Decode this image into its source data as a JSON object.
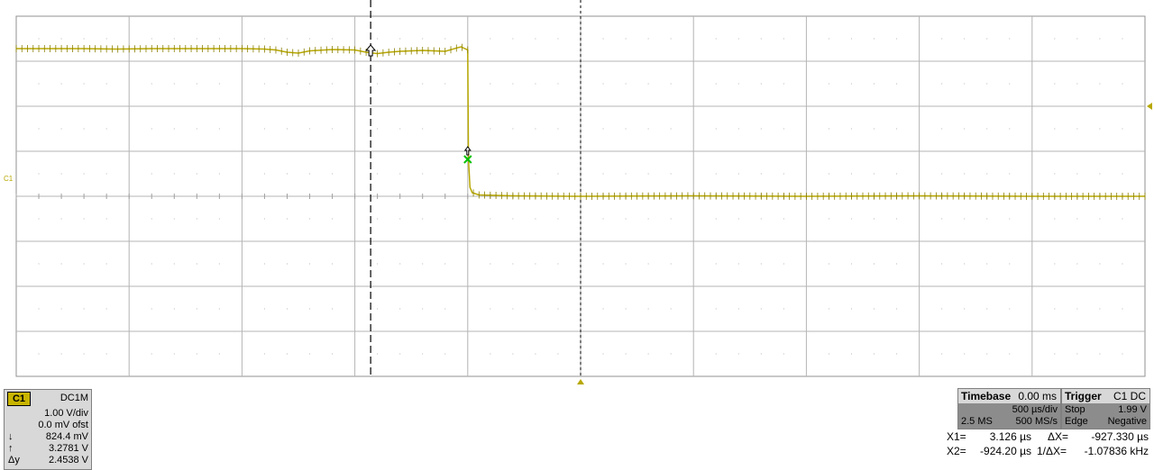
{
  "chart_data": {
    "type": "line",
    "grid": true,
    "x": [
      0,
      0.15,
      0.3,
      0.45,
      0.6,
      0.75,
      0.9,
      1.0,
      1.1,
      1.15,
      1.2,
      1.25,
      1.3,
      1.4,
      1.5,
      1.55,
      1.6,
      1.65,
      1.7,
      1.8,
      1.9,
      1.97,
      2.0,
      2.003,
      2.01,
      2.02,
      2.05,
      2.2,
      2.5,
      3.0,
      3.5,
      4.0,
      4.5,
      5.0
    ],
    "series": [
      {
        "values": [
          3.28,
          3.28,
          3.28,
          3.27,
          3.28,
          3.28,
          3.28,
          3.28,
          3.27,
          3.25,
          3.2,
          3.18,
          3.23,
          3.26,
          3.25,
          3.2,
          3.17,
          3.2,
          3.22,
          3.24,
          3.22,
          3.32,
          3.25,
          0.82,
          0.2,
          0.08,
          0.03,
          0.01,
          0.0,
          0.01,
          0.0,
          0.01,
          0.0,
          0.0
        ],
        "color": "#b8a800"
      }
    ],
    "xlim": [
      0,
      5
    ],
    "ylim": [
      -4,
      4
    ],
    "x_divisions": 10,
    "y_divisions": 8,
    "cursors_x": [
      1.57,
      2.5
    ],
    "marker": {
      "x": 2.0,
      "y": 0.82
    }
  },
  "channel": {
    "badge": "C1",
    "coupling": "DC1M",
    "vdiv": "1.00 V/div",
    "offset": "0.0 mV ofst",
    "sym_down": "↓",
    "val_down": "824.4 mV",
    "sym_up": "↑",
    "val_up": "3.2781 V",
    "sym_dy": "Δy",
    "val_dy": "2.4538 V",
    "trace_label": "C1"
  },
  "timebase": {
    "title": "Timebase",
    "delay": "0.00 ms",
    "tdiv": "500 µs/div",
    "samples": "2.5 MS",
    "rate": "500 MS/s"
  },
  "trigger": {
    "title": "Trigger",
    "source": "C1 DC",
    "mode": "Stop",
    "level": "1.99 V",
    "type": "Edge",
    "slope": "Negative"
  },
  "measure": {
    "x1_label": "X1=",
    "x1_value": "3.126 µs",
    "dx_label": "ΔX=",
    "dx_value": "-927.330 µs",
    "x2_label": "X2=",
    "x2_value": "-924.20 µs",
    "inv_label": "1/ΔX=",
    "inv_value": "-1.07836 kHz"
  },
  "colors": {
    "trace": "#b8a800",
    "grid": "#a0a0a0",
    "marker": "#00c000",
    "channel_badge": "#c8b400"
  }
}
